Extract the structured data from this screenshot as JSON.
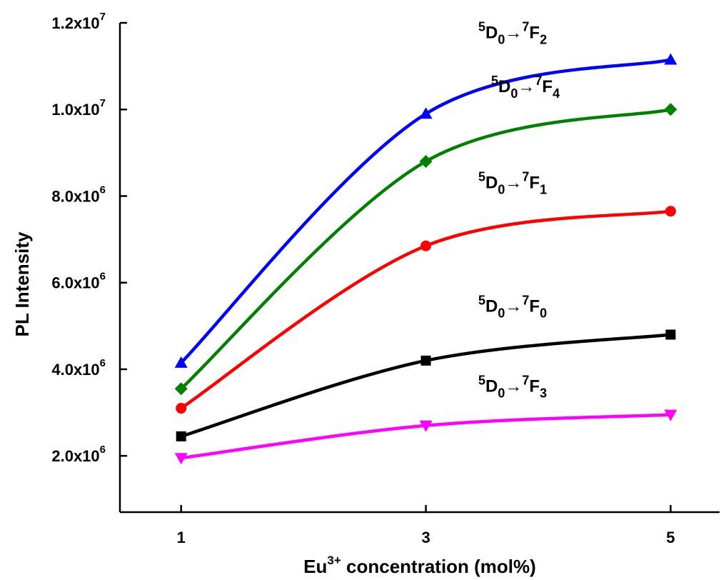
{
  "chart_data": {
    "type": "line",
    "xlabel": {
      "base": "Eu",
      "sup": "3+",
      "rest": " concentration (mol%)"
    },
    "ylabel": "PL Intensity",
    "x": [
      1,
      3,
      5
    ],
    "xticks": [
      1,
      3,
      5
    ],
    "xlim": [
      0.5,
      5.4
    ],
    "ylim": [
      700000,
      12000000
    ],
    "yticks": [
      {
        "value": 2000000,
        "mantissa": "2.0x10",
        "exp": "6"
      },
      {
        "value": 4000000,
        "mantissa": "4.0x10",
        "exp": "6"
      },
      {
        "value": 6000000,
        "mantissa": "6.0x10",
        "exp": "6"
      },
      {
        "value": 8000000,
        "mantissa": "8.0x10",
        "exp": "6"
      },
      {
        "value": 10000000,
        "mantissa": "1.0x10",
        "exp": "7"
      },
      {
        "value": 12000000,
        "mantissa": "1.2x10",
        "exp": "7"
      }
    ],
    "grid": false,
    "series": [
      {
        "name": "5D0→7F2",
        "label": {
          "a": "5",
          "b": "D",
          "c": "0",
          "arrow": "→",
          "d": "7",
          "e": "F",
          "f": "2"
        },
        "color": "#0000ff",
        "marker": "triangle-up",
        "values": [
          4150000,
          9900000,
          11150000
        ]
      },
      {
        "name": "5D0→7F4",
        "label": {
          "a": "5",
          "b": "D",
          "c": "0",
          "arrow": "→",
          "d": "7",
          "e": "F",
          "f": "4"
        },
        "color": "#008000",
        "marker": "diamond",
        "values": [
          3550000,
          8800000,
          10000000
        ]
      },
      {
        "name": "5D0→7F1",
        "label": {
          "a": "5",
          "b": "D",
          "c": "0",
          "arrow": "→",
          "d": "7",
          "e": "F",
          "f": "1"
        },
        "color": "#ff0000",
        "marker": "circle",
        "values": [
          3100000,
          6850000,
          7650000
        ]
      },
      {
        "name": "5D0→7F0",
        "label": {
          "a": "5",
          "b": "D",
          "c": "0",
          "arrow": "→",
          "d": "7",
          "e": "F",
          "f": "0"
        },
        "color": "#000000",
        "marker": "square",
        "values": [
          2450000,
          4200000,
          4800000
        ]
      },
      {
        "name": "5D0→7F3",
        "label": {
          "a": "5",
          "b": "D",
          "c": "0",
          "arrow": "→",
          "d": "7",
          "e": "F",
          "f": "3"
        },
        "color": "#ff00ff",
        "marker": "triangle-down",
        "values": [
          1950000,
          2700000,
          2950000
        ]
      }
    ]
  }
}
